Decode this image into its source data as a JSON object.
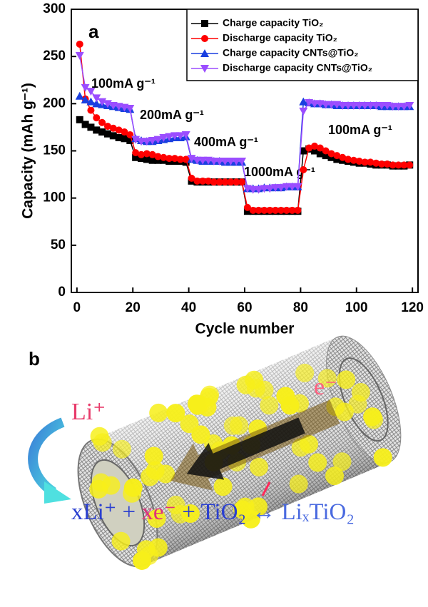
{
  "chart_data": {
    "type": "line",
    "panel_label": "a",
    "x_label": "Cycle number",
    "y_label": "Capacity (mAh g⁻¹)",
    "xlim": [
      -2,
      122
    ],
    "ylim": [
      0,
      300
    ],
    "xticks": [
      0,
      20,
      40,
      60,
      80,
      100,
      120
    ],
    "yticks": [
      0,
      50,
      100,
      150,
      200,
      250,
      300
    ],
    "x": [
      1,
      3,
      5,
      7,
      9,
      11,
      13,
      15,
      17,
      19,
      21,
      23,
      25,
      27,
      29,
      31,
      33,
      35,
      37,
      39,
      41,
      43,
      45,
      47,
      49,
      51,
      53,
      55,
      57,
      59,
      61,
      63,
      65,
      67,
      69,
      71,
      73,
      75,
      77,
      79,
      81,
      83,
      85,
      87,
      89,
      91,
      93,
      95,
      97,
      99,
      101,
      103,
      105,
      107,
      109,
      111,
      113,
      115,
      117,
      119
    ],
    "series": [
      {
        "name": "Charge capacity TiO₂",
        "color": "#000000",
        "marker": "square",
        "values": [
          183,
          178,
          175,
          172,
          170,
          168,
          166,
          164,
          163,
          161,
          143,
          142,
          141,
          140,
          140,
          140,
          139,
          139,
          139,
          138,
          118,
          117,
          117,
          117,
          117,
          117,
          117,
          117,
          117,
          117,
          86,
          86,
          86,
          86,
          86,
          86,
          86,
          86,
          86,
          86,
          150,
          152,
          150,
          147,
          145,
          143,
          141,
          140,
          139,
          138,
          137,
          137,
          136,
          135,
          135,
          135,
          134,
          134,
          134,
          135
        ]
      },
      {
        "name": "Discharge capacity TiO₂",
        "color": "#ff0000",
        "marker": "circle",
        "values": [
          263,
          205,
          193,
          185,
          180,
          176,
          174,
          172,
          170,
          167,
          148,
          146,
          147,
          146,
          144,
          143,
          142,
          142,
          141,
          141,
          121,
          118,
          118,
          118,
          117,
          117,
          117,
          117,
          117,
          117,
          90,
          87,
          87,
          87,
          87,
          87,
          87,
          87,
          87,
          87,
          130,
          153,
          155,
          153,
          150,
          147,
          145,
          143,
          141,
          140,
          139,
          138,
          138,
          137,
          136,
          136,
          135,
          135,
          135,
          135
        ]
      },
      {
        "name": "Charge capacity CNTs@TiO₂",
        "color": "#1a3fe0",
        "marker": "triangle-up",
        "values": [
          208,
          204,
          202,
          200,
          199,
          198,
          197,
          196,
          195,
          194,
          163,
          161,
          160,
          160,
          161,
          162,
          163,
          164,
          164,
          165,
          141,
          140,
          139,
          139,
          139,
          139,
          138,
          138,
          138,
          138,
          110,
          110,
          110,
          111,
          111,
          111,
          111,
          112,
          112,
          112,
          202,
          201,
          200,
          200,
          199,
          199,
          198,
          198,
          198,
          198,
          198,
          198,
          198,
          198,
          197,
          197,
          197,
          197,
          197,
          197
        ]
      },
      {
        "name": "Discharge capacity CNTs@TiO₂",
        "color": "#9b4dff",
        "marker": "triangle-down",
        "values": [
          251,
          217,
          213,
          206,
          202,
          200,
          198,
          197,
          196,
          195,
          162,
          160,
          160,
          161,
          162,
          164,
          165,
          166,
          166,
          167,
          142,
          140,
          140,
          140,
          139,
          139,
          139,
          139,
          139,
          139,
          110,
          109,
          109,
          110,
          110,
          111,
          111,
          112,
          112,
          112,
          192,
          201,
          200,
          200,
          199,
          199,
          199,
          198,
          198,
          198,
          198,
          198,
          198,
          198,
          198,
          198,
          197,
          197,
          197,
          198
        ]
      }
    ],
    "annotations": [
      "100mA g⁻¹",
      "200mA g⁻¹",
      "400mA g⁻¹",
      "1000mA g⁻¹",
      "100mA g⁻¹"
    ],
    "legend": "upper right"
  },
  "diagram": {
    "label": "b",
    "ion": "Li⁺",
    "electron": "e⁻",
    "equation": [
      "xLi⁺",
      " + ",
      "xe⁻",
      " + TiO₂",
      " ↔ LiₓTiO₂"
    ]
  }
}
